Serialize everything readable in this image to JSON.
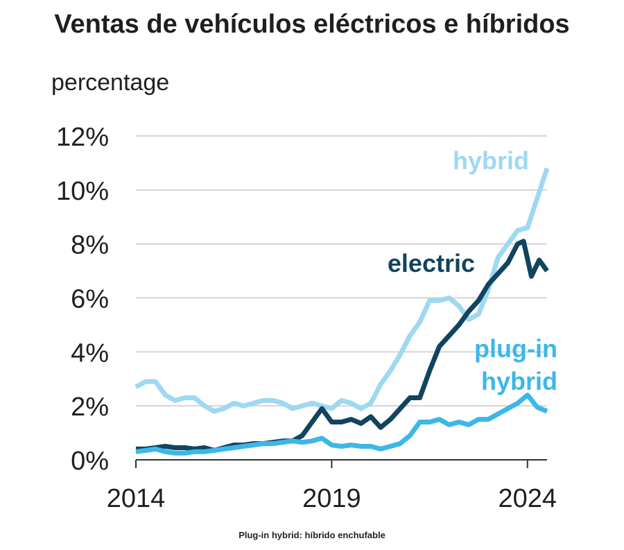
{
  "chart_data": {
    "type": "line",
    "title": "Ventas de vehículos eléctricos e híbridos",
    "ylabel": "percentage",
    "xlim": [
      2014,
      2024.5
    ],
    "ylim": [
      0,
      12
    ],
    "y_ticks": [
      0,
      2,
      4,
      6,
      8,
      10,
      12
    ],
    "y_tick_labels": [
      "0%",
      "2%",
      "4%",
      "6%",
      "8%",
      "10%",
      "12%"
    ],
    "x_ticks": [
      2014,
      2019,
      2024
    ],
    "x_tick_labels": [
      "2014",
      "2019",
      "2024"
    ],
    "grid": "horizontal",
    "series": [
      {
        "name": "hybrid",
        "color": "#9ed8f2",
        "points": [
          [
            2014.0,
            2.7
          ],
          [
            2014.25,
            2.9
          ],
          [
            2014.5,
            2.9
          ],
          [
            2014.75,
            2.4
          ],
          [
            2015.0,
            2.2
          ],
          [
            2015.25,
            2.3
          ],
          [
            2015.5,
            2.3
          ],
          [
            2015.75,
            2.0
          ],
          [
            2016.0,
            1.8
          ],
          [
            2016.25,
            1.9
          ],
          [
            2016.5,
            2.1
          ],
          [
            2016.75,
            2.0
          ],
          [
            2017.0,
            2.1
          ],
          [
            2017.25,
            2.2
          ],
          [
            2017.5,
            2.2
          ],
          [
            2017.75,
            2.1
          ],
          [
            2018.0,
            1.9
          ],
          [
            2018.25,
            2.0
          ],
          [
            2018.5,
            2.1
          ],
          [
            2018.75,
            2.0
          ],
          [
            2019.0,
            1.9
          ],
          [
            2019.25,
            2.2
          ],
          [
            2019.5,
            2.1
          ],
          [
            2019.75,
            1.9
          ],
          [
            2020.0,
            2.1
          ],
          [
            2020.25,
            2.8
          ],
          [
            2020.5,
            3.3
          ],
          [
            2020.75,
            3.9
          ],
          [
            2021.0,
            4.6
          ],
          [
            2021.25,
            5.1
          ],
          [
            2021.5,
            5.9
          ],
          [
            2021.75,
            5.9
          ],
          [
            2022.0,
            6.0
          ],
          [
            2022.25,
            5.7
          ],
          [
            2022.5,
            5.2
          ],
          [
            2022.75,
            5.4
          ],
          [
            2023.0,
            6.3
          ],
          [
            2023.25,
            7.5
          ],
          [
            2023.5,
            8.0
          ],
          [
            2023.75,
            8.5
          ],
          [
            2024.0,
            8.6
          ],
          [
            2024.25,
            9.7
          ],
          [
            2024.5,
            10.8
          ]
        ]
      },
      {
        "name": "electric",
        "color": "#11445f",
        "points": [
          [
            2014.0,
            0.4
          ],
          [
            2014.25,
            0.4
          ],
          [
            2014.5,
            0.45
          ],
          [
            2014.75,
            0.5
          ],
          [
            2015.0,
            0.45
          ],
          [
            2015.25,
            0.45
          ],
          [
            2015.5,
            0.4
          ],
          [
            2015.75,
            0.45
          ],
          [
            2016.0,
            0.35
          ],
          [
            2016.25,
            0.45
          ],
          [
            2016.5,
            0.55
          ],
          [
            2016.75,
            0.55
          ],
          [
            2017.0,
            0.6
          ],
          [
            2017.25,
            0.6
          ],
          [
            2017.5,
            0.65
          ],
          [
            2017.75,
            0.7
          ],
          [
            2018.0,
            0.7
          ],
          [
            2018.25,
            0.9
          ],
          [
            2018.5,
            1.4
          ],
          [
            2018.75,
            1.9
          ],
          [
            2019.0,
            1.4
          ],
          [
            2019.25,
            1.4
          ],
          [
            2019.5,
            1.5
          ],
          [
            2019.75,
            1.35
          ],
          [
            2020.0,
            1.6
          ],
          [
            2020.25,
            1.2
          ],
          [
            2020.5,
            1.5
          ],
          [
            2020.75,
            1.9
          ],
          [
            2021.0,
            2.3
          ],
          [
            2021.25,
            2.3
          ],
          [
            2021.5,
            3.3
          ],
          [
            2021.75,
            4.2
          ],
          [
            2022.0,
            4.6
          ],
          [
            2022.25,
            5.0
          ],
          [
            2022.5,
            5.5
          ],
          [
            2022.75,
            5.9
          ],
          [
            2023.0,
            6.5
          ],
          [
            2023.25,
            6.9
          ],
          [
            2023.5,
            7.3
          ],
          [
            2023.75,
            8.0
          ],
          [
            2023.9,
            8.1
          ],
          [
            2024.1,
            6.8
          ],
          [
            2024.3,
            7.4
          ],
          [
            2024.5,
            7.0
          ]
        ]
      },
      {
        "name": "plug-in hybrid",
        "color": "#3db7e8",
        "points": [
          [
            2014.0,
            0.3
          ],
          [
            2014.25,
            0.35
          ],
          [
            2014.5,
            0.4
          ],
          [
            2014.75,
            0.3
          ],
          [
            2015.0,
            0.25
          ],
          [
            2015.25,
            0.25
          ],
          [
            2015.5,
            0.3
          ],
          [
            2015.75,
            0.3
          ],
          [
            2016.0,
            0.35
          ],
          [
            2016.25,
            0.4
          ],
          [
            2016.5,
            0.45
          ],
          [
            2016.75,
            0.5
          ],
          [
            2017.0,
            0.55
          ],
          [
            2017.25,
            0.6
          ],
          [
            2017.5,
            0.6
          ],
          [
            2017.75,
            0.65
          ],
          [
            2018.0,
            0.7
          ],
          [
            2018.25,
            0.65
          ],
          [
            2018.5,
            0.7
          ],
          [
            2018.75,
            0.8
          ],
          [
            2019.0,
            0.55
          ],
          [
            2019.25,
            0.5
          ],
          [
            2019.5,
            0.55
          ],
          [
            2019.75,
            0.5
          ],
          [
            2020.0,
            0.5
          ],
          [
            2020.25,
            0.4
          ],
          [
            2020.5,
            0.5
          ],
          [
            2020.75,
            0.6
          ],
          [
            2021.0,
            0.9
          ],
          [
            2021.25,
            1.4
          ],
          [
            2021.5,
            1.4
          ],
          [
            2021.75,
            1.5
          ],
          [
            2022.0,
            1.3
          ],
          [
            2022.25,
            1.4
          ],
          [
            2022.5,
            1.3
          ],
          [
            2022.75,
            1.5
          ],
          [
            2023.0,
            1.5
          ],
          [
            2023.25,
            1.7
          ],
          [
            2023.5,
            1.9
          ],
          [
            2023.75,
            2.1
          ],
          [
            2024.0,
            2.4
          ],
          [
            2024.25,
            1.95
          ],
          [
            2024.5,
            1.8
          ]
        ]
      }
    ],
    "annotations": [
      {
        "series": "hybrid",
        "text": "hybrid"
      },
      {
        "series": "electric",
        "text": "electric"
      },
      {
        "series": "plug-in hybrid",
        "lines": [
          "plug-in",
          "hybrid"
        ]
      }
    ]
  },
  "caption": "Plug-in hybrid: híbrido enchufable"
}
